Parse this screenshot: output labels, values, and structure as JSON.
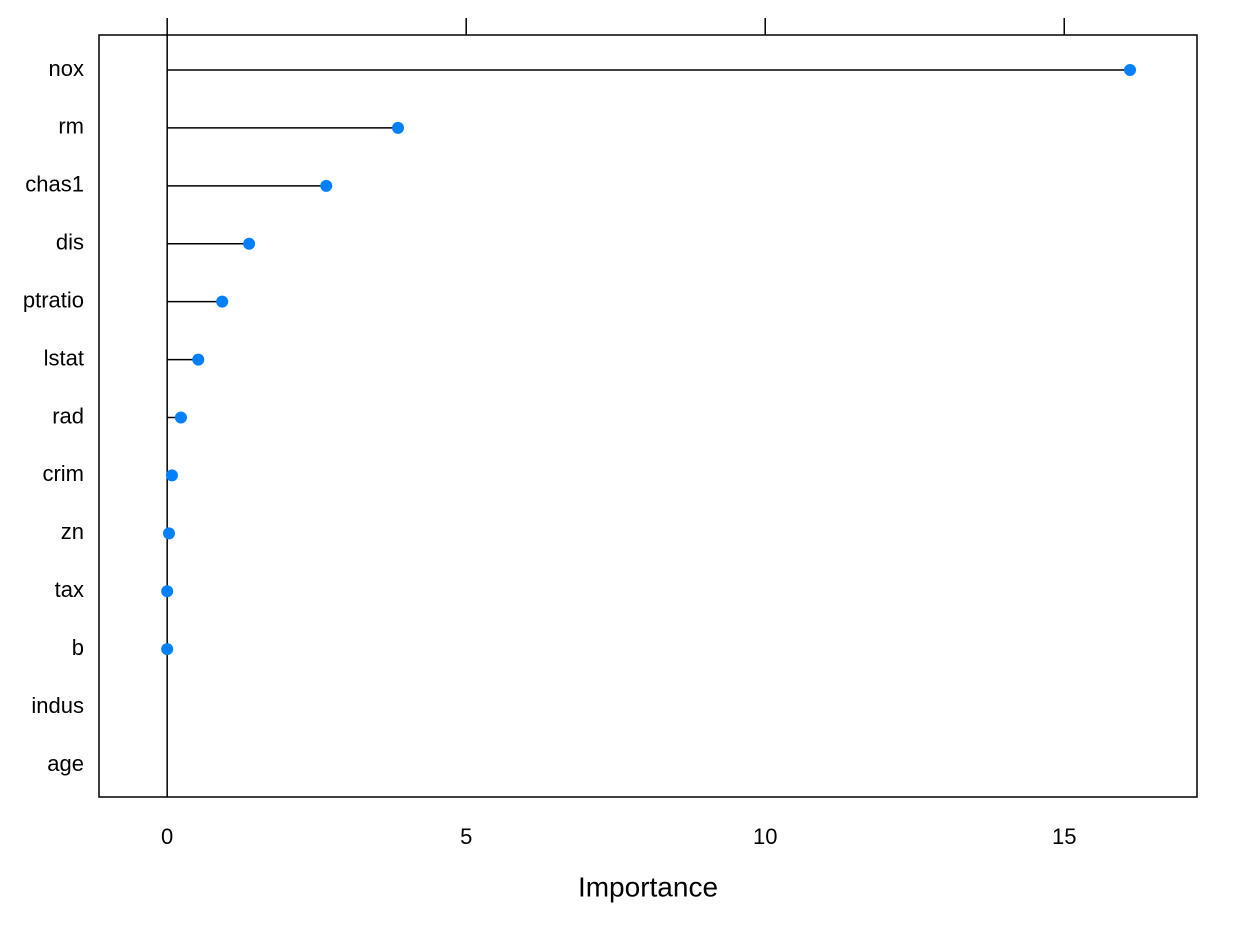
{
  "chart_data": {
    "type": "lollipop",
    "categories": [
      "nox",
      "rm",
      "chas1",
      "dis",
      "ptratio",
      "lstat",
      "rad",
      "crim",
      "zn",
      "tax",
      "b",
      "indus",
      "age"
    ],
    "values": [
      16.1,
      3.86,
      2.66,
      1.37,
      0.92,
      0.52,
      0.23,
      0.08,
      0.03,
      0.0,
      0.0,
      null,
      null
    ],
    "color": "#0080ff",
    "xlabel": "Importance",
    "xlim": [
      -1.14,
      17.22
    ],
    "xticks": [
      0,
      5,
      10,
      15
    ]
  }
}
